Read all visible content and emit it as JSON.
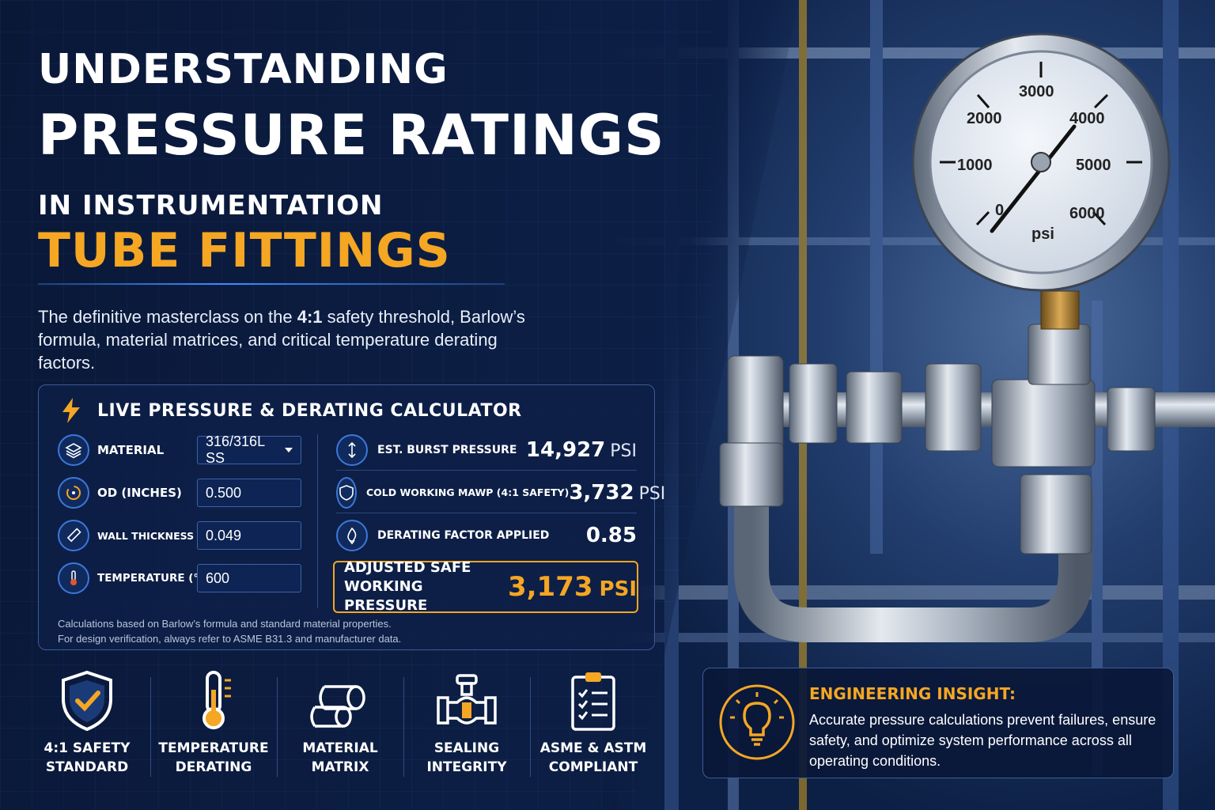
{
  "header": {
    "line1": "UNDERSTANDING",
    "line2": "PRESSURE RATINGS",
    "line3": "IN INSTRUMENTATION",
    "line4": "TUBE FITTINGS"
  },
  "subtitle": {
    "before": "The definitive masterclass on the ",
    "bold": "4:1",
    "after": " safety threshold, Barlow’s formula, material matrices, and critical temperature derating factors."
  },
  "calculator": {
    "title": "LIVE PRESSURE & DERATING CALCULATOR",
    "title_icon": "lightning-bolt-icon",
    "inputs": [
      {
        "label": "MATERIAL",
        "value": "316/316L SS",
        "icon": "layers-icon"
      },
      {
        "label": "OD (INCHES)",
        "value": "0.500",
        "icon": "circle-gauge-icon"
      },
      {
        "label": "WALL THICKNESS (IN.)",
        "value": "0.049",
        "icon": "ruler-icon"
      },
      {
        "label": "TEMPERATURE (°F)",
        "value": "600",
        "icon": "thermometer-icon"
      }
    ],
    "outputs": [
      {
        "label": "EST. BURST PRESSURE",
        "value": "14,927",
        "unit": "PSI",
        "icon": "pressure-arrows-icon"
      },
      {
        "label": "COLD WORKING MAWP (4:1 SAFETY)",
        "value": "3,732",
        "unit": "PSI",
        "icon": "shield-check-icon"
      },
      {
        "label": "DERATING FACTOR APPLIED",
        "value": "0.85",
        "unit": "",
        "icon": "flame-down-icon"
      }
    ],
    "adjusted": {
      "label": "ADJUSTED SAFE WORKING PRESSURE",
      "value": "3,173",
      "unit": "PSI"
    },
    "note_line1": "Calculations based on Barlow’s formula and standard material properties.",
    "note_line2": "For design verification, always refer to ASME B31.3 and manufacturer data."
  },
  "features": [
    {
      "line1": "4:1 SAFETY",
      "line2": "STANDARD",
      "icon": "shield-check-icon"
    },
    {
      "line1": "TEMPERATURE",
      "line2": "DERATING",
      "icon": "thermometer-icon"
    },
    {
      "line1": "MATERIAL",
      "line2": "MATRIX",
      "icon": "tubes-icon"
    },
    {
      "line1": "SEALING",
      "line2": "INTEGRITY",
      "icon": "valve-icon"
    },
    {
      "line1": "ASME & ASTM",
      "line2": "COMPLIANT",
      "icon": "clipboard-checklist-icon"
    }
  ],
  "insight": {
    "title": "ENGINEERING INSIGHT:",
    "body": "Accurate pressure calculations prevent failures, ensure safety, and optimize system performance across all operating conditions.",
    "icon": "lightbulb-icon"
  },
  "gauge": {
    "labels": [
      "0",
      "1000",
      "2000",
      "3000",
      "4000",
      "5000",
      "6000"
    ],
    "unit": "psi"
  },
  "colors": {
    "background": "#0c1e44",
    "accent": "#f5a623",
    "icon_blue": "#3c78d8"
  }
}
